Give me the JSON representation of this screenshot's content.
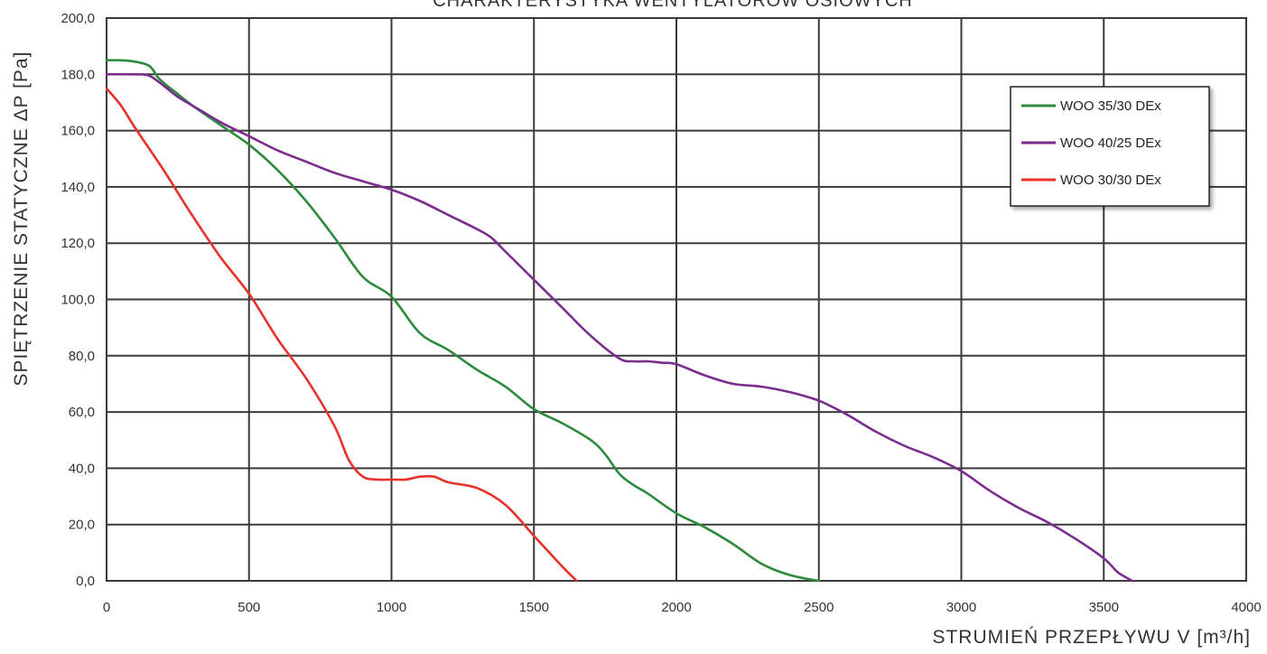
{
  "chart_data": {
    "type": "line",
    "title": "CHARAKTERYSTYKA WENTYLATORÓW OSIOWYCH",
    "xlabel": "STRUMIEŃ PRZEPŁYWU V [m³/h]",
    "ylabel": "SPIĘTRZENIE STATYCZNE ΔP [Pa]",
    "xlim": [
      0,
      4000
    ],
    "ylim": [
      0,
      200
    ],
    "x_ticks": [
      0,
      500,
      1000,
      1500,
      2000,
      2500,
      3000,
      3500,
      4000
    ],
    "x_tick_labels": [
      "0",
      "500",
      "1000",
      "1500",
      "2000",
      "2500",
      "3000",
      "3500",
      "4000"
    ],
    "y_ticks": [
      0,
      20,
      40,
      60,
      80,
      100,
      120,
      140,
      160,
      180,
      200
    ],
    "y_tick_labels": [
      "0,0",
      "20,0",
      "40,0",
      "60,0",
      "80,0",
      "100,0",
      "120,0",
      "140,0",
      "160,0",
      "180,0",
      "200,0"
    ],
    "grid": true,
    "legend_position": "top-right",
    "series": [
      {
        "name": "WOO 35/30 DEx",
        "color": "#2e8b3e",
        "x": [
          0,
          50,
          100,
          150,
          180,
          200,
          250,
          300,
          400,
          500,
          600,
          700,
          800,
          900,
          1000,
          1100,
          1200,
          1300,
          1400,
          1500,
          1600,
          1700,
          1750,
          1800,
          1850,
          1900,
          2000,
          2100,
          2200,
          2300,
          2400,
          2500
        ],
        "y": [
          185,
          185,
          184.5,
          183,
          179,
          177,
          173,
          169,
          162,
          155,
          146,
          135,
          122,
          108,
          101,
          88,
          82,
          75,
          69,
          61,
          56,
          50,
          45,
          38,
          34,
          31,
          24,
          19,
          13,
          6,
          2,
          0
        ]
      },
      {
        "name": "WOO 40/25 DEx",
        "color": "#7b2d8e",
        "x": [
          0,
          100,
          150,
          200,
          250,
          300,
          400,
          500,
          600,
          700,
          800,
          900,
          1000,
          1100,
          1200,
          1300,
          1350,
          1400,
          1500,
          1600,
          1700,
          1800,
          1850,
          1900,
          1950,
          2000,
          2100,
          2200,
          2300,
          2400,
          2500,
          2600,
          2700,
          2800,
          2900,
          3000,
          3100,
          3200,
          3300,
          3400,
          3500,
          3550,
          3600
        ],
        "y": [
          180,
          180,
          179.5,
          176,
          172,
          169,
          163,
          158,
          153,
          149,
          145,
          142,
          139,
          135,
          130,
          125,
          122,
          117,
          107,
          97,
          87,
          79,
          78,
          78,
          77.5,
          77,
          73,
          70,
          69,
          67,
          64,
          59,
          53,
          48,
          44,
          39,
          32,
          26,
          21,
          15,
          8,
          3,
          0
        ]
      },
      {
        "name": "WOO 30/30 DEx",
        "color": "#e8312a",
        "x": [
          0,
          50,
          100,
          200,
          300,
          400,
          500,
          600,
          700,
          800,
          850,
          900,
          950,
          1000,
          1050,
          1100,
          1150,
          1200,
          1300,
          1400,
          1500,
          1600,
          1650
        ],
        "y": [
          175,
          169,
          161,
          146,
          130,
          115,
          102,
          86,
          72,
          55,
          43,
          37,
          36,
          36,
          36,
          37,
          37,
          35,
          33,
          27,
          16,
          5,
          0
        ]
      }
    ]
  }
}
